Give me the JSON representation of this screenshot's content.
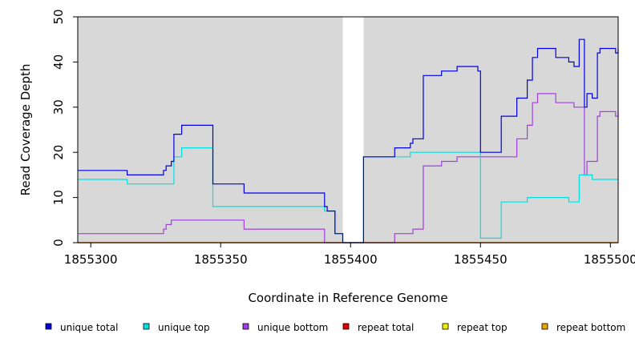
{
  "chart_data": {
    "type": "line",
    "title": "",
    "xlabel": "Coordinate in Reference Genome",
    "ylabel": "Read Coverage Depth",
    "xlim": [
      1855295,
      1855503
    ],
    "ylim": [
      0,
      50
    ],
    "x_ticks": [
      1855300,
      1855350,
      1855400,
      1855450,
      1855500
    ],
    "y_ticks": [
      0,
      10,
      20,
      30,
      40,
      50
    ],
    "gap": [
      1855397,
      1855405
    ],
    "grid": false,
    "legend_position": "bottom",
    "colors": {
      "background": "#d8d8d8",
      "gap": "#ffffff"
    },
    "series": [
      {
        "name": "unique total",
        "color": "#0000e0",
        "points": [
          [
            1855295,
            16
          ],
          [
            1855314,
            16
          ],
          [
            1855314,
            15
          ],
          [
            1855328,
            15
          ],
          [
            1855328,
            16
          ],
          [
            1855329,
            16
          ],
          [
            1855329,
            17
          ],
          [
            1855331,
            17
          ],
          [
            1855331,
            18
          ],
          [
            1855332,
            18
          ],
          [
            1855332,
            24
          ],
          [
            1855335,
            24
          ],
          [
            1855335,
            26
          ],
          [
            1855347,
            26
          ],
          [
            1855347,
            13
          ],
          [
            1855359,
            13
          ],
          [
            1855359,
            11
          ],
          [
            1855390,
            11
          ],
          [
            1855390,
            8
          ],
          [
            1855391,
            8
          ],
          [
            1855391,
            7
          ],
          [
            1855394,
            7
          ],
          [
            1855394,
            2
          ],
          [
            1855397,
            2
          ],
          [
            1855397,
            0
          ],
          [
            1855405,
            0
          ],
          [
            1855405,
            19
          ],
          [
            1855417,
            19
          ],
          [
            1855417,
            21
          ],
          [
            1855423,
            21
          ],
          [
            1855423,
            22
          ],
          [
            1855424,
            22
          ],
          [
            1855424,
            23
          ],
          [
            1855428,
            23
          ],
          [
            1855428,
            37
          ],
          [
            1855435,
            37
          ],
          [
            1855435,
            38
          ],
          [
            1855441,
            38
          ],
          [
            1855441,
            39
          ],
          [
            1855449,
            39
          ],
          [
            1855449,
            38
          ],
          [
            1855450,
            38
          ],
          [
            1855450,
            20
          ],
          [
            1855458,
            20
          ],
          [
            1855458,
            28
          ],
          [
            1855464,
            28
          ],
          [
            1855464,
            32
          ],
          [
            1855468,
            32
          ],
          [
            1855468,
            36
          ],
          [
            1855470,
            36
          ],
          [
            1855470,
            41
          ],
          [
            1855472,
            41
          ],
          [
            1855472,
            43
          ],
          [
            1855479,
            43
          ],
          [
            1855479,
            41
          ],
          [
            1855484,
            41
          ],
          [
            1855484,
            40
          ],
          [
            1855486,
            40
          ],
          [
            1855486,
            39
          ],
          [
            1855488,
            39
          ],
          [
            1855488,
            45
          ],
          [
            1855490,
            45
          ],
          [
            1855490,
            30
          ],
          [
            1855491,
            30
          ],
          [
            1855491,
            33
          ],
          [
            1855493,
            33
          ],
          [
            1855493,
            32
          ],
          [
            1855495,
            32
          ],
          [
            1855495,
            42
          ],
          [
            1855496,
            42
          ],
          [
            1855496,
            43
          ],
          [
            1855502,
            43
          ],
          [
            1855502,
            42
          ],
          [
            1855503,
            42
          ],
          [
            1855503,
            43
          ]
        ]
      },
      {
        "name": "unique top",
        "color": "#00e0e0",
        "points": [
          [
            1855295,
            14
          ],
          [
            1855314,
            14
          ],
          [
            1855314,
            13
          ],
          [
            1855332,
            13
          ],
          [
            1855332,
            19
          ],
          [
            1855335,
            19
          ],
          [
            1855335,
            21
          ],
          [
            1855347,
            21
          ],
          [
            1855347,
            8
          ],
          [
            1855390,
            8
          ],
          [
            1855390,
            7
          ],
          [
            1855394,
            7
          ],
          [
            1855394,
            2
          ],
          [
            1855397,
            2
          ],
          [
            1855397,
            0
          ],
          [
            1855405,
            0
          ],
          [
            1855405,
            19
          ],
          [
            1855423,
            19
          ],
          [
            1855423,
            20
          ],
          [
            1855450,
            20
          ],
          [
            1855450,
            1
          ],
          [
            1855458,
            1
          ],
          [
            1855458,
            9
          ],
          [
            1855468,
            9
          ],
          [
            1855468,
            10
          ],
          [
            1855484,
            10
          ],
          [
            1855484,
            9
          ],
          [
            1855488,
            9
          ],
          [
            1855488,
            15
          ],
          [
            1855493,
            15
          ],
          [
            1855493,
            14
          ],
          [
            1855503,
            14
          ]
        ]
      },
      {
        "name": "unique bottom",
        "color": "#a040e0",
        "points": [
          [
            1855295,
            2
          ],
          [
            1855328,
            2
          ],
          [
            1855328,
            3
          ],
          [
            1855329,
            3
          ],
          [
            1855329,
            4
          ],
          [
            1855331,
            4
          ],
          [
            1855331,
            5
          ],
          [
            1855359,
            5
          ],
          [
            1855359,
            3
          ],
          [
            1855390,
            3
          ],
          [
            1855390,
            0
          ],
          [
            1855417,
            0
          ],
          [
            1855417,
            2
          ],
          [
            1855424,
            2
          ],
          [
            1855424,
            3
          ],
          [
            1855428,
            3
          ],
          [
            1855428,
            17
          ],
          [
            1855435,
            17
          ],
          [
            1855435,
            18
          ],
          [
            1855441,
            18
          ],
          [
            1855441,
            19
          ],
          [
            1855464,
            19
          ],
          [
            1855464,
            23
          ],
          [
            1855468,
            23
          ],
          [
            1855468,
            26
          ],
          [
            1855470,
            26
          ],
          [
            1855470,
            31
          ],
          [
            1855472,
            31
          ],
          [
            1855472,
            33
          ],
          [
            1855479,
            33
          ],
          [
            1855479,
            31
          ],
          [
            1855486,
            31
          ],
          [
            1855486,
            30
          ],
          [
            1855490,
            30
          ],
          [
            1855490,
            15
          ],
          [
            1855491,
            15
          ],
          [
            1855491,
            18
          ],
          [
            1855495,
            18
          ],
          [
            1855495,
            28
          ],
          [
            1855496,
            28
          ],
          [
            1855496,
            29
          ],
          [
            1855502,
            29
          ],
          [
            1855502,
            28
          ],
          [
            1855503,
            28
          ],
          [
            1855503,
            29
          ]
        ]
      },
      {
        "name": "repeat total",
        "color": "#e00000",
        "points": [
          [
            1855295,
            0
          ],
          [
            1855503,
            0
          ]
        ]
      },
      {
        "name": "repeat top",
        "color": "#f0f000",
        "points": [
          [
            1855295,
            0
          ],
          [
            1855503,
            0
          ]
        ]
      },
      {
        "name": "repeat bottom",
        "color": "#f0a000",
        "points": [
          [
            1855295,
            0
          ],
          [
            1855503,
            0
          ]
        ]
      }
    ]
  }
}
